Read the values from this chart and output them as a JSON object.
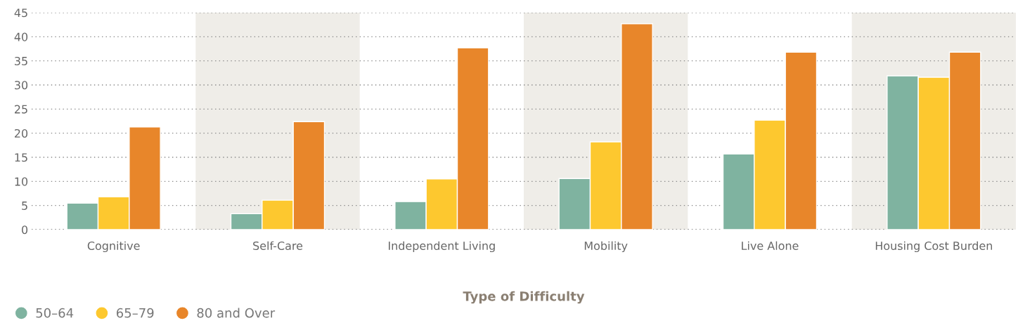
{
  "chart_data": {
    "type": "bar",
    "xlabel": "Type of Difficulty",
    "categories": [
      "Cognitive",
      "Self-Care",
      "Independent Living",
      "Mobility",
      "Live Alone",
      "Housing Cost Burden"
    ],
    "series": [
      {
        "name": "50–64",
        "color": "#7fb3a0",
        "values": [
          5.5,
          3.3,
          5.8,
          10.6,
          15.7,
          31.9
        ]
      },
      {
        "name": "65–79",
        "color": "#fdc82f",
        "values": [
          6.8,
          6.1,
          10.5,
          18.2,
          22.7,
          31.6
        ]
      },
      {
        "name": "80 and Over",
        "color": "#e8862a",
        "values": [
          21.3,
          22.4,
          37.7,
          42.7,
          36.8,
          36.8
        ]
      }
    ],
    "ylim": [
      0,
      45
    ],
    "yticks": [
      0,
      5,
      10,
      15,
      20,
      25,
      30,
      35,
      40,
      45
    ],
    "grid": "y",
    "legend": "bottom left",
    "bands": [
      {
        "axis": "x",
        "from": "Self-Care",
        "to": "Self-Care",
        "color": "#efede8"
      },
      {
        "axis": "x",
        "from": "Mobility",
        "to": "Mobility",
        "color": "#efede8"
      },
      {
        "axis": "x",
        "from": "Housing Cost Burden",
        "to": "Housing Cost Burden",
        "color": "#efede8"
      }
    ]
  }
}
